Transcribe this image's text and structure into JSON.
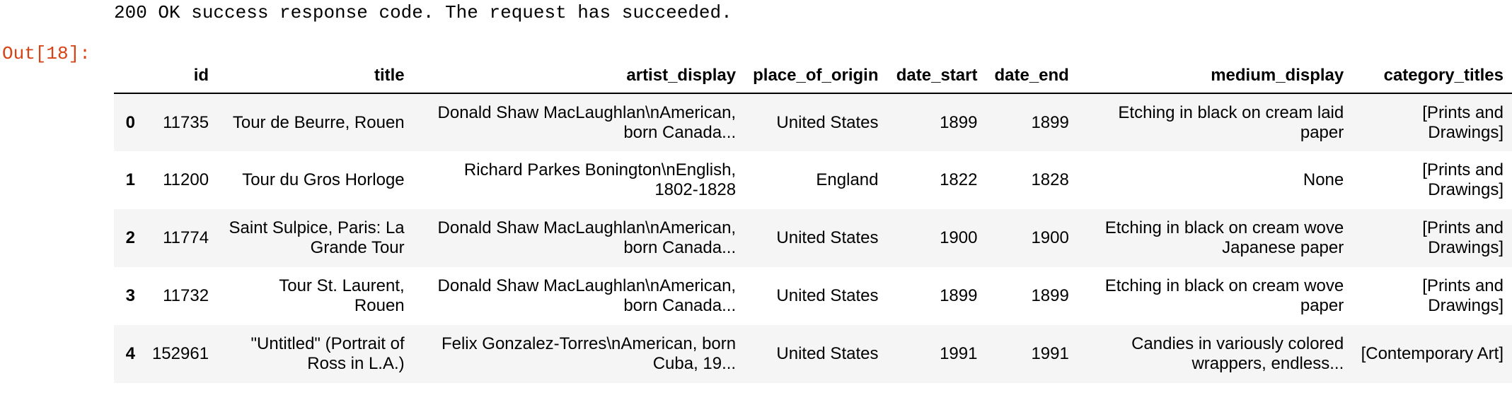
{
  "cell": {
    "stream_output": "200 OK success response code. The request has succeeded.",
    "out_prompt": "Out[18]:"
  },
  "dataframe": {
    "columns": [
      "",
      "id",
      "title",
      "artist_display",
      "place_of_origin",
      "date_start",
      "date_end",
      "medium_display",
      "category_titles"
    ],
    "rows": [
      {
        "index": "0",
        "id": "11735",
        "title": "Tour de Beurre, Rouen",
        "artist_display": "Donald Shaw MacLaughlan\\nAmerican, born Canada...",
        "place_of_origin": "United States",
        "date_start": "1899",
        "date_end": "1899",
        "medium_display": "Etching in black on cream laid paper",
        "category_titles": "[Prints and Drawings]"
      },
      {
        "index": "1",
        "id": "11200",
        "title": "Tour du Gros Horloge",
        "artist_display": "Richard Parkes Bonington\\nEnglish, 1802-1828",
        "place_of_origin": "England",
        "date_start": "1822",
        "date_end": "1828",
        "medium_display": "None",
        "category_titles": "[Prints and Drawings]"
      },
      {
        "index": "2",
        "id": "11774",
        "title": "Saint Sulpice, Paris: La Grande Tour",
        "artist_display": "Donald Shaw MacLaughlan\\nAmerican, born Canada...",
        "place_of_origin": "United States",
        "date_start": "1900",
        "date_end": "1900",
        "medium_display": "Etching in black on cream wove Japanese paper",
        "category_titles": "[Prints and Drawings]"
      },
      {
        "index": "3",
        "id": "11732",
        "title": "Tour St. Laurent, Rouen",
        "artist_display": "Donald Shaw MacLaughlan\\nAmerican, born Canada...",
        "place_of_origin": "United States",
        "date_start": "1899",
        "date_end": "1899",
        "medium_display": "Etching in black on cream wove paper",
        "category_titles": "[Prints and Drawings]"
      },
      {
        "index": "4",
        "id": "152961",
        "title": "\"Untitled\" (Portrait of Ross in L.A.)",
        "artist_display": "Felix Gonzalez-Torres\\nAmerican, born Cuba, 19...",
        "place_of_origin": "United States",
        "date_start": "1991",
        "date_end": "1991",
        "medium_display": "Candies in variously colored wrappers, endless...",
        "category_titles": "[Contemporary Art]"
      }
    ]
  }
}
